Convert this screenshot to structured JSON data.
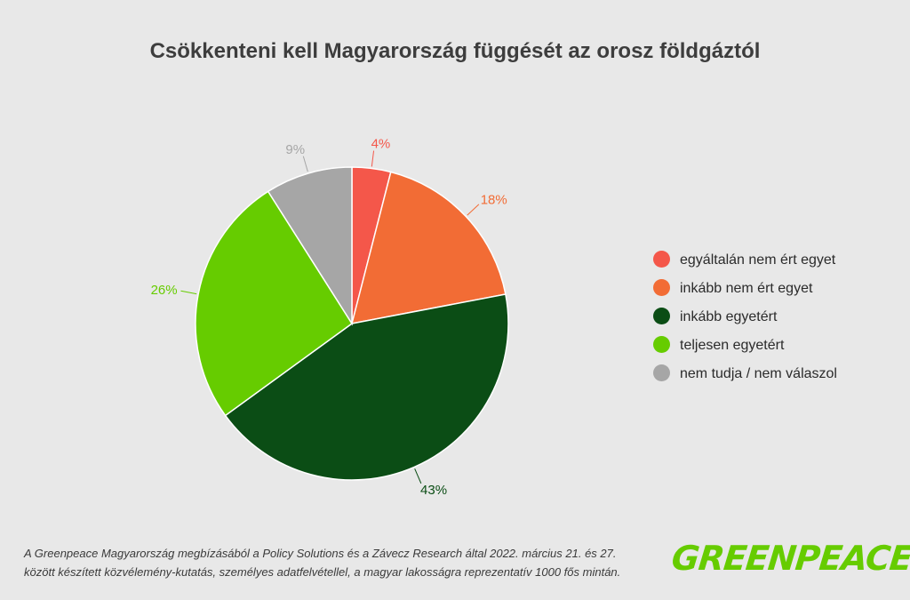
{
  "chart_data": {
    "type": "pie",
    "title": "Csökkenteni kell Magyarország függését az orosz földgáztól",
    "slices": [
      {
        "label": "egyáltalán nem ért egyet",
        "value": 4,
        "value_label": "4%",
        "color": "#f4574a"
      },
      {
        "label": "inkább nem ért egyet",
        "value": 18,
        "value_label": "18%",
        "color": "#f26c35"
      },
      {
        "label": "inkább egyetért",
        "value": 43,
        "value_label": "43%",
        "color": "#0b4d15"
      },
      {
        "label": "teljesen egyetért",
        "value": 26,
        "value_label": "26%",
        "color": "#66cc00"
      },
      {
        "label": "nem tudja / nem válaszol",
        "value": 9,
        "value_label": "9%",
        "color": "#a6a6a6"
      }
    ],
    "legend_position": "right"
  },
  "source_text": "A Greenpeace Magyarország megbízásából a Policy Solutions és a Závecz Research által 2022. március 21. és 27. között készített közvélemény-kutatás, személyes adatfelvétellel, a magyar lakosságra reprezentatív 1000 fős mintán.",
  "logo_text": "GREENPEACE"
}
